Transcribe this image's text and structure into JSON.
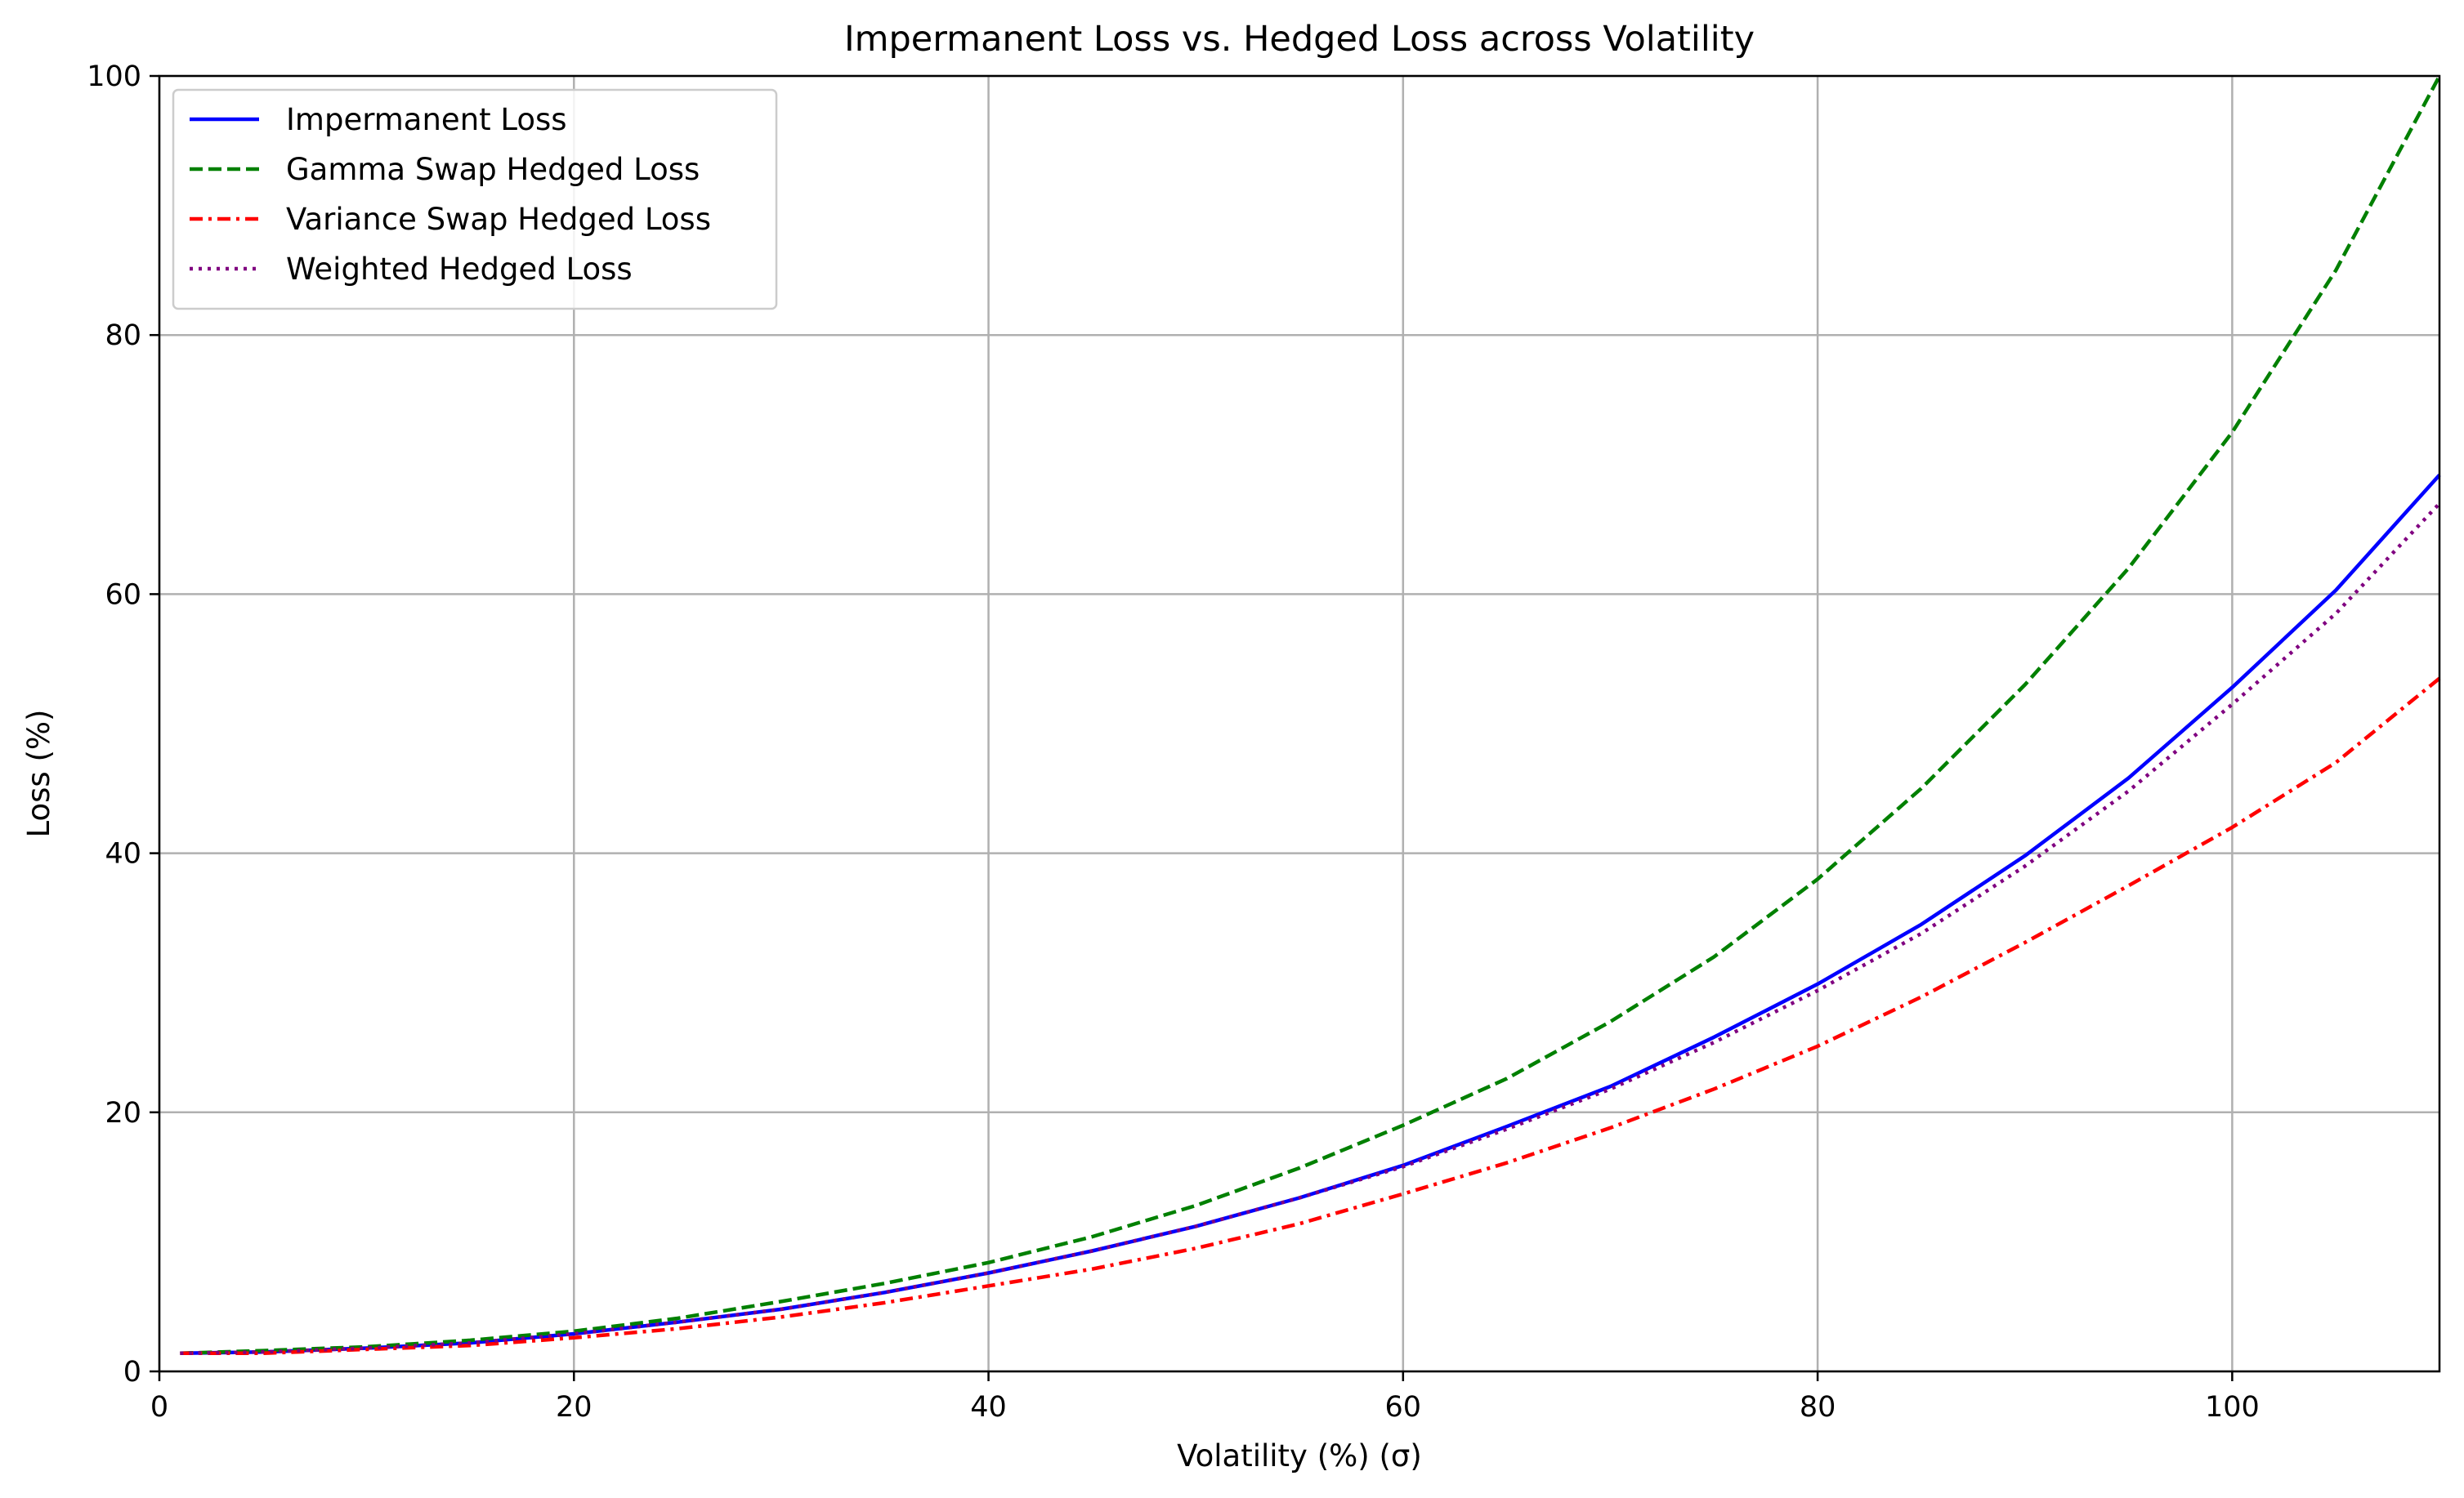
{
  "chart_data": {
    "type": "line",
    "title": "Impermanent Loss vs. Hedged Loss across Volatility",
    "xlabel": "Volatility (%) (σ)",
    "ylabel": "Loss (%)",
    "xlim": [
      0,
      110
    ],
    "ylim": [
      0,
      100
    ],
    "xticks": [
      0,
      20,
      40,
      60,
      80,
      100
    ],
    "yticks": [
      0,
      20,
      40,
      60,
      80,
      100
    ],
    "grid": true,
    "legend_position": "top-left",
    "x": [
      1,
      5,
      10,
      15,
      20,
      25,
      30,
      35,
      40,
      45,
      50,
      55,
      60,
      65,
      70,
      75,
      80,
      85,
      90,
      95,
      100,
      105,
      110
    ],
    "series": [
      {
        "name": "Impermanent Loss",
        "color": "#0000ff",
        "dash": "solid",
        "values": [
          1.4,
          1.5,
          1.8,
          2.2,
          2.9,
          3.8,
          4.8,
          6.1,
          7.6,
          9.3,
          11.2,
          13.4,
          15.9,
          18.9,
          22.0,
          25.8,
          29.9,
          34.5,
          39.8,
          45.8,
          52.8,
          60.3,
          69.2
        ]
      },
      {
        "name": "Gamma Swap Hedged Loss",
        "color": "#008000",
        "dash": "dashed",
        "values": [
          1.4,
          1.6,
          1.9,
          2.4,
          3.1,
          4.1,
          5.4,
          6.8,
          8.4,
          10.4,
          12.8,
          15.7,
          19.0,
          22.6,
          27.0,
          32.0,
          38.0,
          45.0,
          53.0,
          62.0,
          72.5,
          85.0,
          100.0
        ]
      },
      {
        "name": "Variance Swap Hedged Loss",
        "color": "#ff0000",
        "dash": "dashdot",
        "values": [
          1.4,
          1.4,
          1.7,
          2.0,
          2.6,
          3.3,
          4.2,
          5.3,
          6.6,
          7.9,
          9.5,
          11.4,
          13.7,
          16.1,
          18.8,
          21.8,
          25.1,
          28.9,
          33.1,
          37.5,
          42.0,
          47.0,
          53.5
        ]
      },
      {
        "name": "Weighted Hedged Loss",
        "color": "#800080",
        "dash": "dotted",
        "values": [
          1.4,
          1.5,
          1.8,
          2.2,
          2.9,
          3.8,
          4.8,
          6.1,
          7.6,
          9.3,
          11.2,
          13.4,
          15.8,
          18.7,
          21.8,
          25.4,
          29.4,
          33.8,
          39.0,
          44.8,
          51.5,
          58.5,
          67.0
        ]
      }
    ]
  }
}
